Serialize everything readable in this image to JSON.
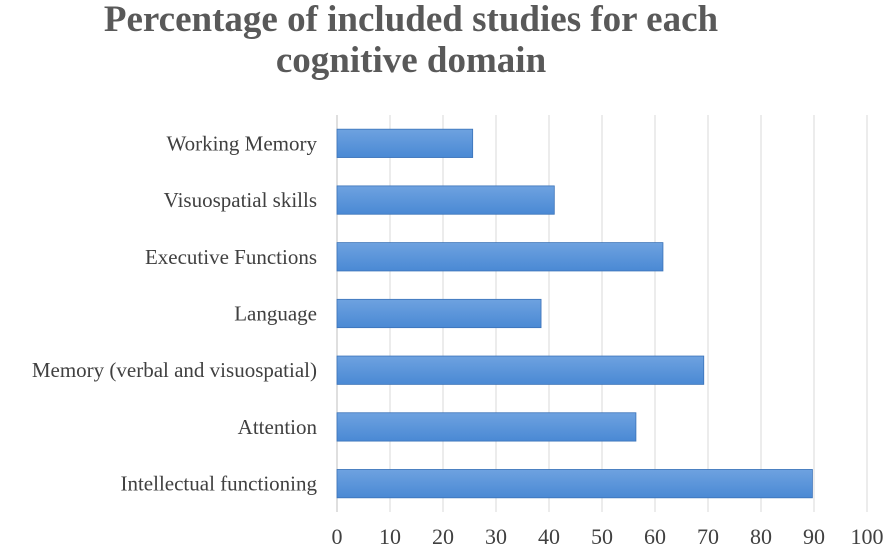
{
  "chart_data": {
    "type": "bar",
    "orientation": "horizontal",
    "title_lines": [
      "Percentage of included studies for each",
      "cognitive domain"
    ],
    "categories": [
      "Working Memory",
      "Visuospatial skills",
      "Executive Functions",
      "Language",
      "Memory (verbal and visuospatial)",
      "Attention",
      "Intellectual functioning"
    ],
    "values": [
      25.6,
      41,
      61.5,
      38.5,
      69.2,
      56.4,
      89.7
    ],
    "xlim": [
      0,
      100
    ],
    "xticks": [
      "0",
      "10",
      "20",
      "30",
      "40",
      "50",
      "60",
      "70",
      "80",
      "90",
      "100"
    ],
    "grid": "vertical",
    "legend": "none",
    "bar_color": "#4a89d4",
    "bar_color_light": "#6ea2e0",
    "bar_edge_color": "#3a72b8",
    "gridline_color": "#d9d9d9",
    "axis_color": "#bfbfbf"
  }
}
